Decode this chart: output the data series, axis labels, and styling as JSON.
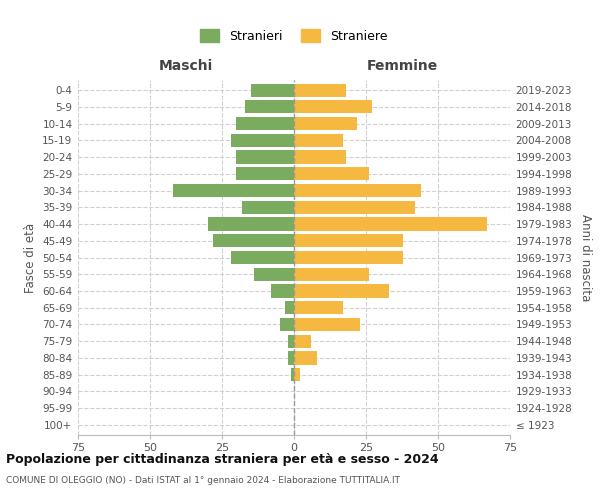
{
  "age_groups": [
    "100+",
    "95-99",
    "90-94",
    "85-89",
    "80-84",
    "75-79",
    "70-74",
    "65-69",
    "60-64",
    "55-59",
    "50-54",
    "45-49",
    "40-44",
    "35-39",
    "30-34",
    "25-29",
    "20-24",
    "15-19",
    "10-14",
    "5-9",
    "0-4"
  ],
  "birth_years": [
    "≤ 1923",
    "1924-1928",
    "1929-1933",
    "1934-1938",
    "1939-1943",
    "1944-1948",
    "1949-1953",
    "1954-1958",
    "1959-1963",
    "1964-1968",
    "1969-1973",
    "1974-1978",
    "1979-1983",
    "1984-1988",
    "1989-1993",
    "1994-1998",
    "1999-2003",
    "2004-2008",
    "2009-2013",
    "2014-2018",
    "2019-2023"
  ],
  "maschi": [
    0,
    0,
    0,
    1,
    2,
    2,
    5,
    3,
    8,
    14,
    22,
    28,
    30,
    18,
    42,
    20,
    20,
    22,
    20,
    17,
    15
  ],
  "femmine": [
    0,
    0,
    0,
    2,
    8,
    6,
    23,
    17,
    33,
    26,
    38,
    38,
    67,
    42,
    44,
    26,
    18,
    17,
    22,
    27,
    18
  ],
  "color_maschi": "#7aab5e",
  "color_femmine": "#f5b942",
  "title": "Popolazione per cittadinanza straniera per età e sesso - 2024",
  "subtitle": "COMUNE DI OLEGGIO (NO) - Dati ISTAT al 1° gennaio 2024 - Elaborazione TUTTITALIA.IT",
  "xlabel_left": "Maschi",
  "xlabel_right": "Femmine",
  "ylabel_left": "Fasce di età",
  "ylabel_right": "Anni di nascita",
  "legend_maschi": "Stranieri",
  "legend_femmine": "Straniere",
  "xlim": 75,
  "background_color": "#ffffff",
  "grid_color": "#d0d0d0"
}
